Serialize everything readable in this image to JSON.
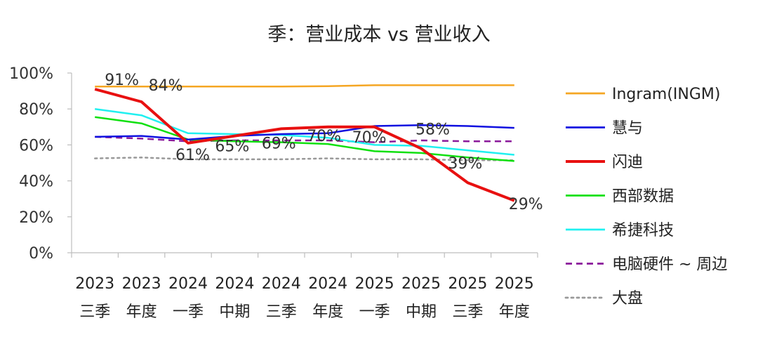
{
  "chart_data": {
    "type": "line",
    "title": "季：营业成本 vs 营业收入",
    "xlabel": "",
    "ylabel": "",
    "ylim": [
      0,
      100
    ],
    "y_ticks": [
      "0%",
      "20%",
      "40%",
      "60%",
      "80%",
      "100%"
    ],
    "categories": [
      [
        "2023",
        "三季"
      ],
      [
        "2023",
        "年度"
      ],
      [
        "2024",
        "一季"
      ],
      [
        "2024",
        "中期"
      ],
      [
        "2024",
        "三季"
      ],
      [
        "2024",
        "年度"
      ],
      [
        "2025",
        "一季"
      ],
      [
        "2025",
        "中期"
      ],
      [
        "2025",
        "三季"
      ],
      [
        "2025",
        "年度"
      ]
    ],
    "legend_position": "right",
    "grid": false,
    "series": [
      {
        "name": "Ingram(INGM)",
        "color": "#F5A623",
        "style": "solid",
        "values": [
          92.5,
          92.5,
          92.5,
          92.5,
          92.5,
          92.7,
          93.2,
          93.2,
          93.2,
          93.2
        ]
      },
      {
        "name": "慧与",
        "color": "#1010E0",
        "style": "solid",
        "values": [
          64.5,
          65,
          63,
          65,
          66,
          66.5,
          70.5,
          71,
          70.5,
          69.5
        ]
      },
      {
        "name": "闪迪",
        "color": "#E81010",
        "style": "solid",
        "values": [
          91,
          84,
          61,
          65,
          69,
          70,
          70,
          58,
          39,
          29
        ],
        "labels": [
          "91%",
          "84%",
          "61%",
          "65%",
          "69%",
          "70%",
          "70%",
          "58%",
          "39%",
          "29%"
        ]
      },
      {
        "name": "西部数据",
        "color": "#10E010",
        "style": "solid",
        "values": [
          75.5,
          72,
          63,
          62,
          61.5,
          60.5,
          56.5,
          55.5,
          53,
          51
        ]
      },
      {
        "name": "希捷科技",
        "color": "#20F0F0",
        "style": "solid",
        "values": [
          80,
          76.5,
          66.5,
          66,
          65.5,
          64,
          60,
          59.5,
          57,
          54.5
        ]
      },
      {
        "name": "电脑硬件 ~ 周边",
        "color": "#8B1A9B",
        "style": "dashed",
        "values": [
          64.5,
          63.5,
          62,
          62.5,
          62.5,
          62.5,
          61.5,
          62.5,
          62,
          62
        ]
      },
      {
        "name": "大盘",
        "color": "#999999",
        "style": "dotted",
        "values": [
          52.5,
          53,
          52,
          52,
          52,
          52.5,
          52,
          52,
          51.5,
          51.5
        ]
      }
    ]
  }
}
